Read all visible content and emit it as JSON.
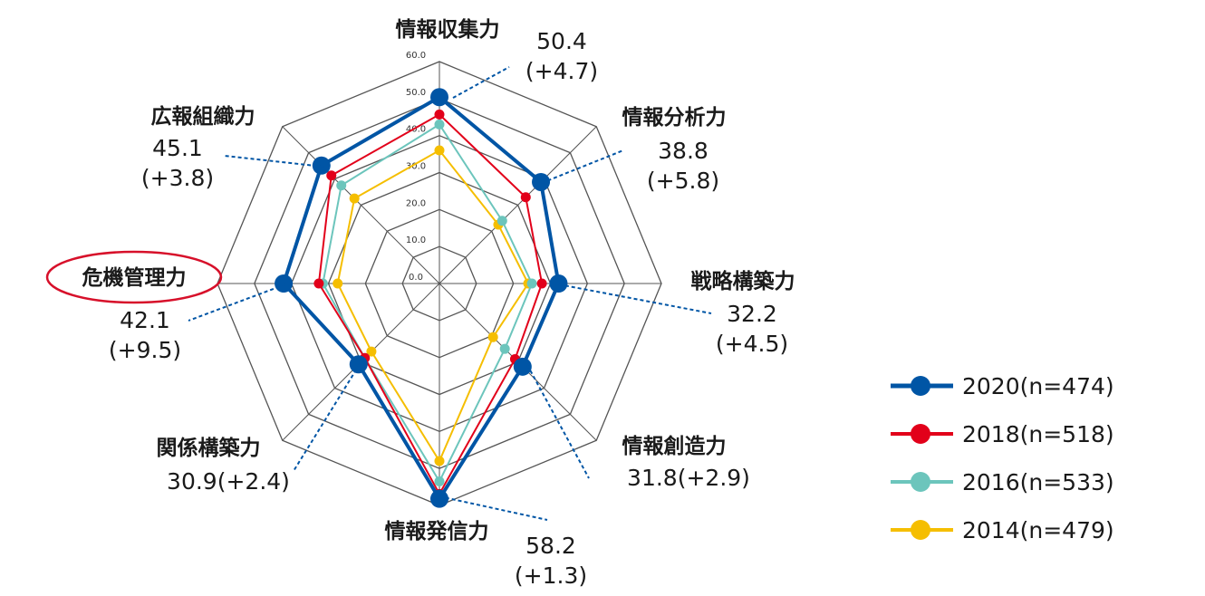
{
  "chart_data": {
    "type": "radar",
    "axes": [
      "情報収集力",
      "情報分析力",
      "戦略構築力",
      "情報創造力",
      "情報発信力",
      "関係構築力",
      "危機管理力",
      "広報組織力"
    ],
    "rmin": 0,
    "rmax": 60,
    "ticks": [
      "0.0",
      "10.0",
      "20.0",
      "30.0",
      "40.0",
      "50.0",
      "60.0"
    ],
    "highlighted_axis": "危機管理力",
    "series": [
      {
        "name": "2014(n=479)",
        "color": "#F5BE00",
        "values": [
          36.0,
          22.5,
          24.0,
          20.5,
          48.0,
          26.0,
          27.5,
          32.5
        ]
      },
      {
        "name": "2016(n=533)",
        "color": "#6CC5BC",
        "values": [
          43.0,
          24.0,
          25.0,
          25.0,
          53.5,
          28.5,
          31.5,
          37.5
        ]
      },
      {
        "name": "2018(n=518)",
        "color": "#E2001A",
        "values": [
          45.7,
          33.0,
          27.7,
          28.9,
          56.9,
          28.5,
          32.6,
          41.3
        ]
      },
      {
        "name": "2020(n=474)",
        "color": "#0055A5",
        "values": [
          50.4,
          38.8,
          32.2,
          31.8,
          58.2,
          30.9,
          42.1,
          45.1
        ]
      }
    ],
    "annotations": [
      {
        "axis": "情報収集力",
        "lines": [
          "50.4",
          "(+4.7)"
        ]
      },
      {
        "axis": "情報分析力",
        "lines": [
          "38.8",
          "(+5.8)"
        ]
      },
      {
        "axis": "戦略構築力",
        "lines": [
          "32.2",
          "(+4.5)"
        ]
      },
      {
        "axis": "情報創造力",
        "lines": [
          "31.8(+2.9)"
        ]
      },
      {
        "axis": "情報発信力",
        "lines": [
          "58.2",
          "(+1.3)"
        ]
      },
      {
        "axis": "関係構築力",
        "lines": [
          "30.9(+2.4)"
        ]
      },
      {
        "axis": "危機管理力",
        "lines": [
          "42.1",
          "(+9.5)"
        ]
      },
      {
        "axis": "広報組織力",
        "lines": [
          "45.1",
          "(+3.8)"
        ]
      }
    ],
    "legend_position": "right"
  }
}
